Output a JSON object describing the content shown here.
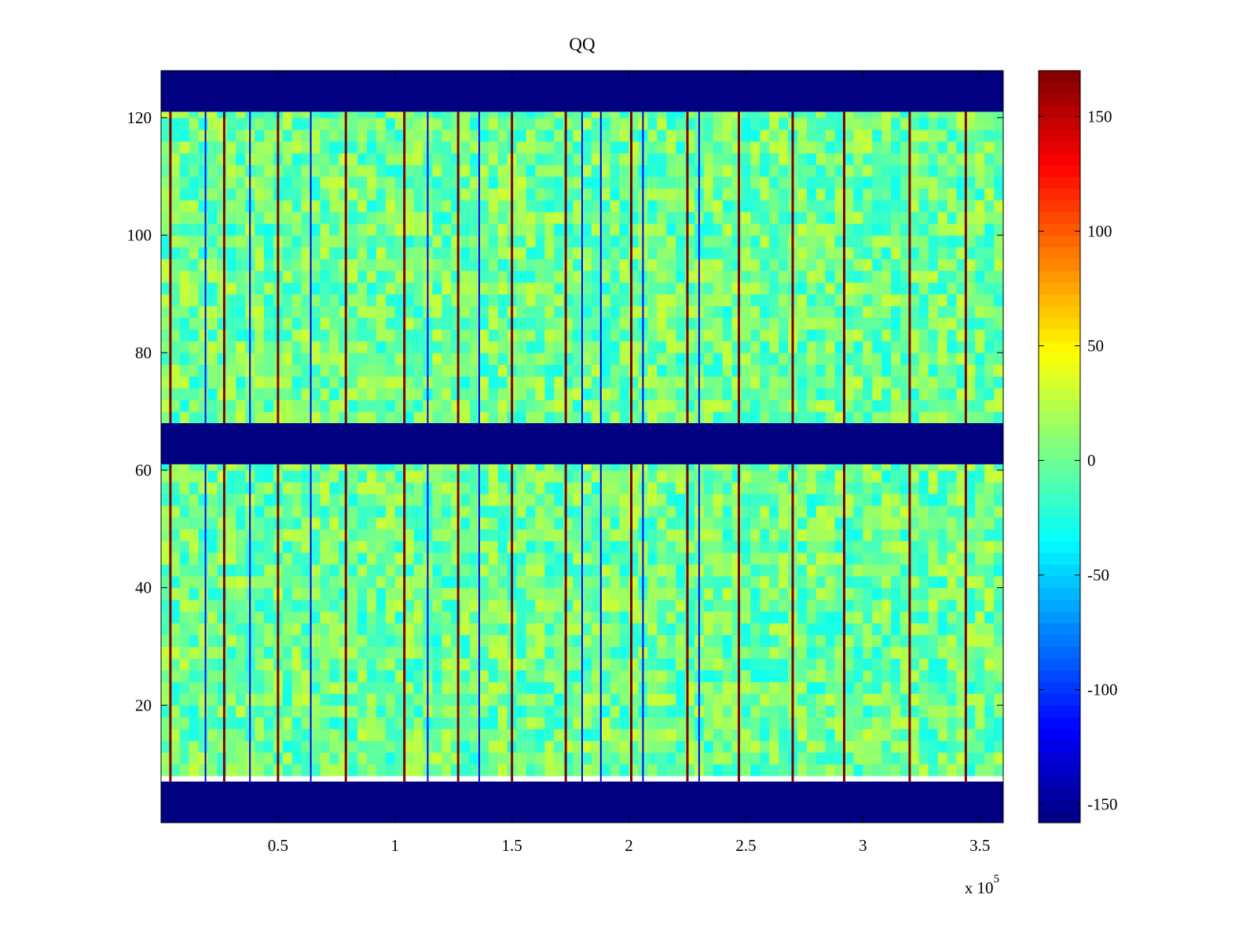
{
  "chart_data": {
    "type": "heatmap",
    "title": "QQ",
    "xlabel": "",
    "ylabel": "",
    "x_multiplier_label": {
      "base": "x 10",
      "exponent": "5"
    },
    "xlim": [
      0,
      360000
    ],
    "ylim": [
      0,
      128
    ],
    "x_ticks": [
      {
        "value": 50000,
        "label": "0.5"
      },
      {
        "value": 100000,
        "label": "1"
      },
      {
        "value": 150000,
        "label": "1.5"
      },
      {
        "value": 200000,
        "label": "2"
      },
      {
        "value": 250000,
        "label": "2.5"
      },
      {
        "value": 300000,
        "label": "3"
      },
      {
        "value": 350000,
        "label": "3.5"
      }
    ],
    "y_ticks": [
      {
        "value": 20,
        "label": "20"
      },
      {
        "value": 40,
        "label": "40"
      },
      {
        "value": 60,
        "label": "60"
      },
      {
        "value": 80,
        "label": "80"
      },
      {
        "value": 100,
        "label": "100"
      },
      {
        "value": 120,
        "label": "120"
      }
    ],
    "colormap": "jet",
    "clim": [
      -158,
      170
    ],
    "colorbar": {
      "ticks": [
        {
          "value": 150,
          "label": "150"
        },
        {
          "value": 100,
          "label": "100"
        },
        {
          "value": 50,
          "label": "50"
        },
        {
          "value": 0,
          "label": "0"
        },
        {
          "value": -50,
          "label": "-50"
        },
        {
          "value": -100,
          "label": "-100"
        },
        {
          "value": -150,
          "label": "-150"
        }
      ]
    },
    "masked_row_bands": [
      [
        0,
        7
      ],
      [
        61,
        68
      ],
      [
        121,
        128
      ]
    ],
    "masked_value": -158,
    "background_value_range": [
      -30,
      30
    ],
    "high_value_columns_x": [
      4000,
      27000,
      50000,
      79000,
      104000,
      127000,
      150000,
      173000,
      201000,
      225000,
      247000,
      270000,
      292000,
      320000,
      344000
    ],
    "low_value_columns_x": [
      19000,
      38000,
      64000,
      114000,
      136000,
      180000,
      188000,
      206000,
      230000
    ],
    "grid": false,
    "legend": "none"
  }
}
